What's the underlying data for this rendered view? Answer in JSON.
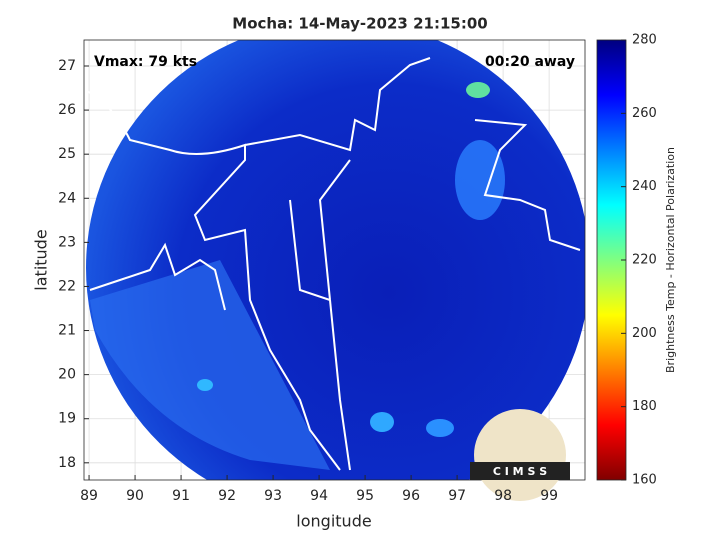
{
  "map": {
    "title": "Mocha: 14-May-2023 21:15:00",
    "xlabel": "longitude",
    "ylabel": "latitude",
    "xlim": [
      88.89,
      99.78
    ],
    "ylim": [
      17.61,
      27.59
    ],
    "xticks": [
      89,
      90,
      91,
      92,
      93,
      94,
      95,
      96,
      97,
      98,
      99
    ],
    "yticks": [
      18,
      19,
      20,
      21,
      22,
      23,
      24,
      25,
      26,
      27
    ],
    "grid": true,
    "annotations": [
      "Vmax: 79 kts",
      "00:20 away"
    ],
    "logo": "C I M S S",
    "colorbar": {
      "label": "Brightness Temp - Horizontal Polarization",
      "lim": [
        160,
        280
      ],
      "ticks": [
        160,
        180,
        200,
        220,
        240,
        260,
        280
      ],
      "colors": [
        "#800000",
        "#ff0000",
        "#ff8000",
        "#ffff00",
        "#80ff80",
        "#00ffff",
        "#0080ff",
        "#0000ff",
        "#000080"
      ]
    }
  }
}
